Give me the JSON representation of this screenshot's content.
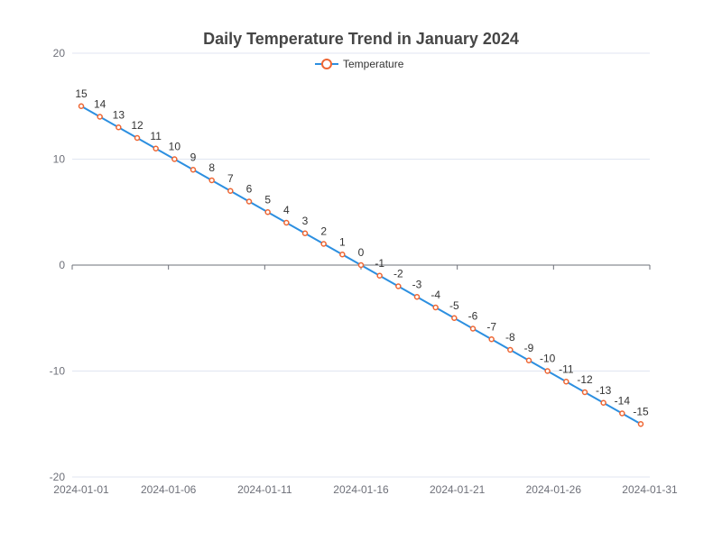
{
  "chart_data": {
    "type": "line",
    "title": "Daily Temperature Trend in January 2024",
    "x": [
      "2024-01-01",
      "2024-01-02",
      "2024-01-03",
      "2024-01-04",
      "2024-01-05",
      "2024-01-06",
      "2024-01-07",
      "2024-01-08",
      "2024-01-09",
      "2024-01-10",
      "2024-01-11",
      "2024-01-12",
      "2024-01-13",
      "2024-01-14",
      "2024-01-15",
      "2024-01-16",
      "2024-01-17",
      "2024-01-18",
      "2024-01-19",
      "2024-01-20",
      "2024-01-21",
      "2024-01-22",
      "2024-01-23",
      "2024-01-24",
      "2024-01-25",
      "2024-01-26",
      "2024-01-27",
      "2024-01-28",
      "2024-01-29",
      "2024-01-30",
      "2024-01-31"
    ],
    "x_tick_labels": [
      "2024-01-01",
      "2024-01-06",
      "2024-01-11",
      "2024-01-16",
      "2024-01-21",
      "2024-01-26",
      "2024-01-31"
    ],
    "series": [
      {
        "name": "Temperature",
        "values": [
          15,
          14,
          13,
          12,
          11,
          10,
          9,
          8,
          7,
          6,
          5,
          4,
          3,
          2,
          1,
          0,
          -1,
          -2,
          -3,
          -4,
          -5,
          -6,
          -7,
          -8,
          -9,
          -10,
          -11,
          -12,
          -13,
          -14,
          -15
        ]
      }
    ],
    "xlabel": "",
    "ylabel": "",
    "ylim": [
      -20,
      20
    ],
    "y_ticks": [
      20,
      10,
      0,
      -10,
      -20
    ],
    "grid": true,
    "legend": "top-center",
    "colors": {
      "line": "#2c8fe0",
      "marker": "#ee6633",
      "title": "#464646"
    }
  }
}
